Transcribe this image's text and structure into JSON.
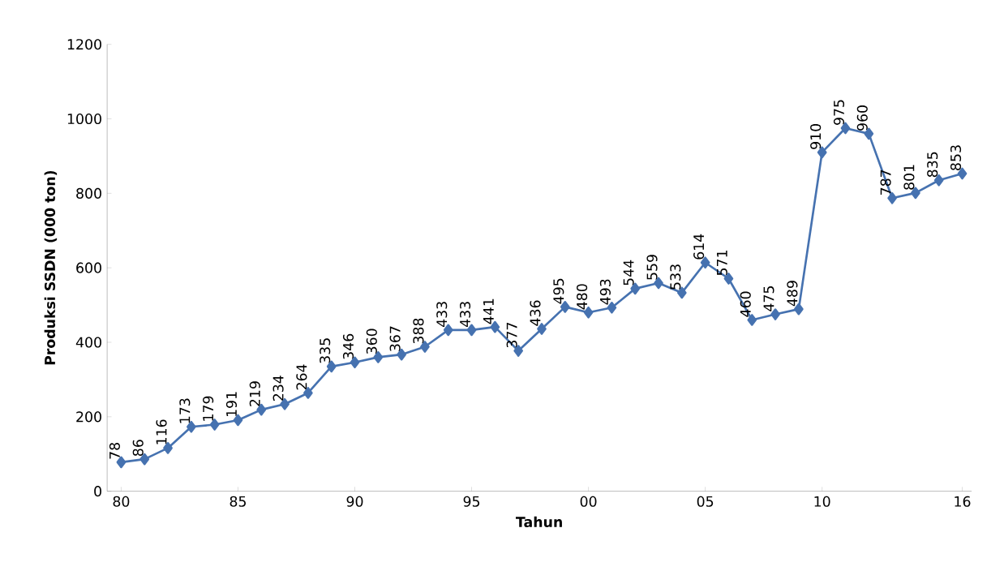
{
  "chart_data": {
    "type": "line",
    "xlabel": "Tahun",
    "ylabel": "Produksi SSDN (000 ton)",
    "categories": [
      "80",
      null,
      null,
      null,
      null,
      "85",
      null,
      null,
      null,
      null,
      "90",
      null,
      null,
      null,
      null,
      "95",
      null,
      null,
      null,
      null,
      "00",
      null,
      null,
      null,
      null,
      "05",
      null,
      null,
      null,
      null,
      "10",
      null,
      null,
      null,
      null,
      null,
      "16"
    ],
    "values": [
      78,
      86,
      116,
      173,
      179,
      191,
      219,
      234,
      264,
      335,
      346,
      360,
      367,
      388,
      433,
      433,
      441,
      377,
      436,
      495,
      480,
      493,
      544,
      559,
      533,
      614,
      571,
      460,
      475,
      489,
      910,
      975,
      960,
      787,
      801,
      835,
      853
    ],
    "color": "#4672b0",
    "marker": "diamond",
    "data_labels": true,
    "grid": false,
    "ylim": [
      0,
      1200
    ],
    "yticks": [
      0,
      200,
      400,
      600,
      800,
      1000,
      1200
    ]
  }
}
